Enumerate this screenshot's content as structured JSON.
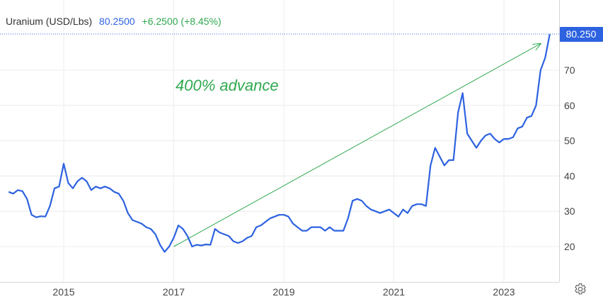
{
  "header": {
    "instrument": "Uranium (USD/Lbs)",
    "price": "80.2500",
    "change": "+6.2500 (+8.45%)"
  },
  "annotation": "400% advance",
  "last_price_label": "80.250",
  "icons": {
    "settings": "gear-icon"
  },
  "colors": {
    "line": "#2d62e0",
    "arrow": "#2fa84f",
    "annotation": "#2fa84f",
    "price_badge": "#2d62e0",
    "grid": "#ececec",
    "axis_text": "#444444"
  },
  "chart_data": {
    "type": "line",
    "title": "Uranium (USD/Lbs)",
    "xlabel": "",
    "ylabel": "",
    "x_range": [
      "2014-01",
      "2023-11"
    ],
    "ylim": [
      10,
      84
    ],
    "yticks": [
      20,
      30,
      40,
      50,
      60,
      70
    ],
    "ytick_labels": [
      "20",
      "30",
      "40",
      "50",
      "60",
      "70"
    ],
    "xticks": [
      "2015-01",
      "2017-01",
      "2019-01",
      "2021-01",
      "2023-01"
    ],
    "xtick_labels": [
      "2015",
      "2017",
      "2019",
      "2021",
      "2023"
    ],
    "grid": true,
    "last_value": 80.25,
    "series": [
      {
        "name": "Uranium (USD/Lbs)",
        "points": [
          [
            "2014-01",
            35.5
          ],
          [
            "2014-02",
            35.0
          ],
          [
            "2014-03",
            36.0
          ],
          [
            "2014-04",
            35.7
          ],
          [
            "2014-05",
            33.5
          ],
          [
            "2014-06",
            29.0
          ],
          [
            "2014-07",
            28.3
          ],
          [
            "2014-08",
            28.6
          ],
          [
            "2014-09",
            28.5
          ],
          [
            "2014-10",
            31.5
          ],
          [
            "2014-11",
            36.5
          ],
          [
            "2014-12",
            37.0
          ],
          [
            "2015-01",
            43.5
          ],
          [
            "2015-02",
            38.0
          ],
          [
            "2015-03",
            36.5
          ],
          [
            "2015-04",
            38.5
          ],
          [
            "2015-05",
            39.5
          ],
          [
            "2015-06",
            38.5
          ],
          [
            "2015-07",
            36.0
          ],
          [
            "2015-08",
            37.0
          ],
          [
            "2015-09",
            36.5
          ],
          [
            "2015-10",
            37.0
          ],
          [
            "2015-11",
            36.5
          ],
          [
            "2015-12",
            35.5
          ],
          [
            "2016-01",
            35.0
          ],
          [
            "2016-02",
            33.0
          ],
          [
            "2016-03",
            29.5
          ],
          [
            "2016-04",
            27.5
          ],
          [
            "2016-05",
            27.0
          ],
          [
            "2016-06",
            26.5
          ],
          [
            "2016-07",
            25.5
          ],
          [
            "2016-08",
            25.0
          ],
          [
            "2016-09",
            23.5
          ],
          [
            "2016-10",
            20.5
          ],
          [
            "2016-11",
            18.5
          ],
          [
            "2016-12",
            20.0
          ],
          [
            "2017-01",
            22.5
          ],
          [
            "2017-02",
            26.0
          ],
          [
            "2017-03",
            25.0
          ],
          [
            "2017-04",
            23.0
          ],
          [
            "2017-05",
            20.0
          ],
          [
            "2017-06",
            20.5
          ],
          [
            "2017-07",
            20.3
          ],
          [
            "2017-08",
            20.6
          ],
          [
            "2017-09",
            20.5
          ],
          [
            "2017-10",
            25.0
          ],
          [
            "2017-11",
            24.0
          ],
          [
            "2017-12",
            23.5
          ],
          [
            "2018-01",
            23.0
          ],
          [
            "2018-02",
            21.5
          ],
          [
            "2018-03",
            21.0
          ],
          [
            "2018-04",
            21.5
          ],
          [
            "2018-05",
            22.5
          ],
          [
            "2018-06",
            23.0
          ],
          [
            "2018-07",
            25.5
          ],
          [
            "2018-08",
            26.0
          ],
          [
            "2018-09",
            27.0
          ],
          [
            "2018-10",
            28.0
          ],
          [
            "2018-11",
            28.5
          ],
          [
            "2018-12",
            29.0
          ],
          [
            "2019-01",
            29.0
          ],
          [
            "2019-02",
            28.5
          ],
          [
            "2019-03",
            26.5
          ],
          [
            "2019-04",
            25.5
          ],
          [
            "2019-05",
            24.5
          ],
          [
            "2019-06",
            24.5
          ],
          [
            "2019-07",
            25.5
          ],
          [
            "2019-08",
            25.5
          ],
          [
            "2019-09",
            25.5
          ],
          [
            "2019-10",
            24.5
          ],
          [
            "2019-11",
            25.5
          ],
          [
            "2019-12",
            24.5
          ],
          [
            "2020-01",
            24.5
          ],
          [
            "2020-02",
            24.5
          ],
          [
            "2020-03",
            28.0
          ],
          [
            "2020-04",
            33.0
          ],
          [
            "2020-05",
            33.5
          ],
          [
            "2020-06",
            33.0
          ],
          [
            "2020-07",
            31.5
          ],
          [
            "2020-08",
            30.5
          ],
          [
            "2020-09",
            30.0
          ],
          [
            "2020-10",
            29.5
          ],
          [
            "2020-11",
            30.0
          ],
          [
            "2020-12",
            30.5
          ],
          [
            "2021-01",
            29.5
          ],
          [
            "2021-02",
            28.5
          ],
          [
            "2021-03",
            30.5
          ],
          [
            "2021-04",
            29.5
          ],
          [
            "2021-05",
            31.5
          ],
          [
            "2021-06",
            32.0
          ],
          [
            "2021-07",
            32.0
          ],
          [
            "2021-08",
            31.5
          ],
          [
            "2021-09",
            43.0
          ],
          [
            "2021-10",
            48.0
          ],
          [
            "2021-11",
            45.5
          ],
          [
            "2021-12",
            43.0
          ],
          [
            "2022-01",
            44.5
          ],
          [
            "2022-02",
            44.5
          ],
          [
            "2022-03",
            58.0
          ],
          [
            "2022-04",
            63.5
          ],
          [
            "2022-05",
            52.0
          ],
          [
            "2022-06",
            50.0
          ],
          [
            "2022-07",
            48.0
          ],
          [
            "2022-08",
            50.0
          ],
          [
            "2022-09",
            51.5
          ],
          [
            "2022-10",
            52.0
          ],
          [
            "2022-11",
            50.5
          ],
          [
            "2022-12",
            49.5
          ],
          [
            "2023-01",
            50.5
          ],
          [
            "2023-02",
            50.5
          ],
          [
            "2023-03",
            51.0
          ],
          [
            "2023-04",
            53.5
          ],
          [
            "2023-05",
            54.0
          ],
          [
            "2023-06",
            56.5
          ],
          [
            "2023-07",
            57.0
          ],
          [
            "2023-08",
            60.0
          ],
          [
            "2023-09",
            70.0
          ],
          [
            "2023-10",
            73.5
          ],
          [
            "2023-11",
            80.25
          ]
        ]
      }
    ],
    "annotations": [
      {
        "text": "400% advance",
        "type": "arrow",
        "from": [
          "2017-01",
          20.0
        ],
        "to": [
          "2023-09",
          77.5
        ]
      }
    ]
  }
}
